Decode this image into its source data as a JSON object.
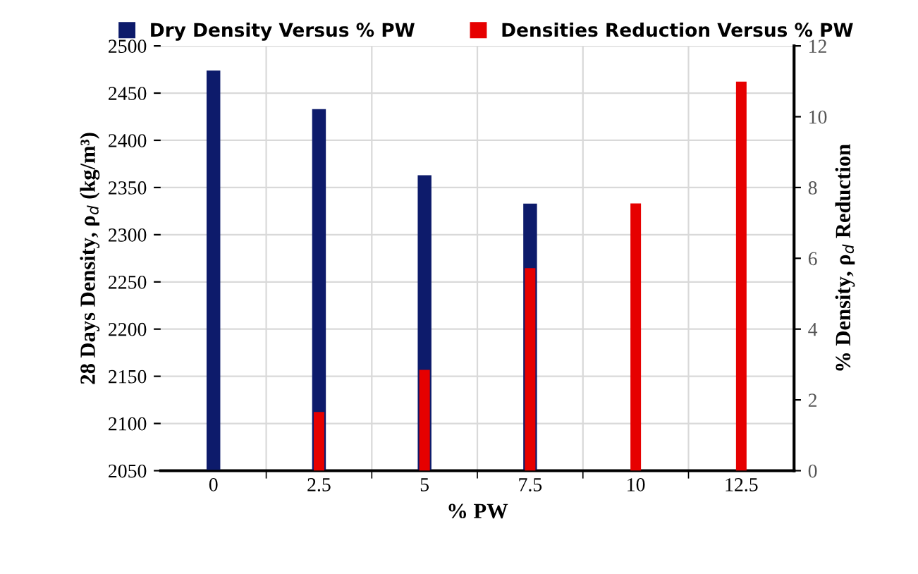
{
  "chart_data": {
    "type": "bar",
    "xlabel": "% PW",
    "ylabel": "28 Days Density, ρ$_{d}$ (kg/m³)",
    "y2label": "% Density, ρ$_{d}$ Reduction",
    "categories": [
      "0",
      "2.5",
      "5",
      "7.5",
      "10",
      "12.5"
    ],
    "series": [
      {
        "name": "Dry Density Versus % PW",
        "color": "#0d1b6b",
        "values": [
          2474,
          2433,
          2363,
          2333,
          null,
          null
        ]
      },
      {
        "name": "Densities Reduction Versus % PW",
        "color": "#e60000",
        "axis": "y2",
        "values": [
          0,
          1.66,
          2.85,
          5.72,
          7.55,
          10.99
        ]
      }
    ],
    "ylim": [
      2050,
      2500
    ],
    "yticks": [
      2050,
      2100,
      2150,
      2200,
      2250,
      2300,
      2350,
      2400,
      2450,
      2500
    ],
    "y2lim": [
      0,
      12
    ],
    "y2ticks": [
      0,
      2,
      4,
      6,
      8,
      10,
      12
    ],
    "grid": true,
    "legend": "top"
  }
}
